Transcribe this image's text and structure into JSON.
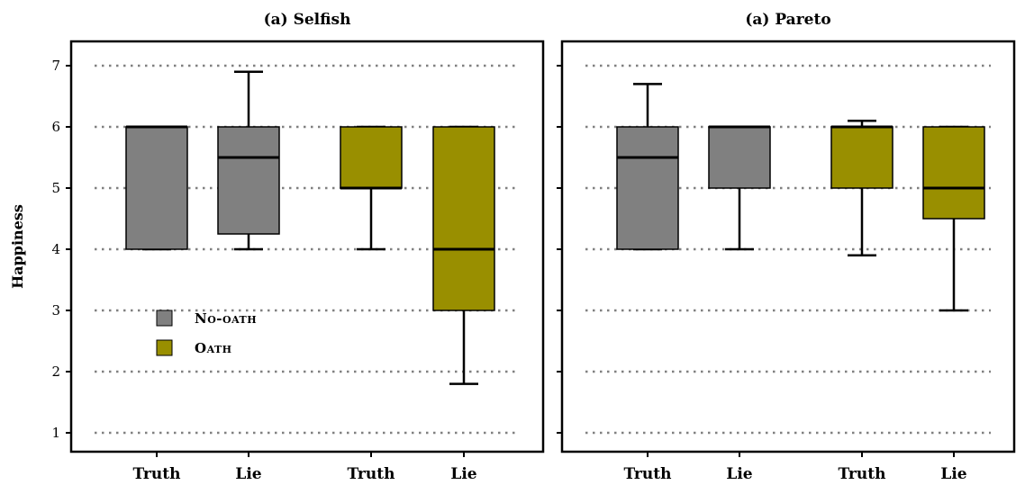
{
  "chart_data": {
    "type": "box",
    "ylabel": "Happiness",
    "ylim": [
      0.75,
      7.5
    ],
    "yticks": [
      1,
      2,
      3,
      4,
      5,
      6,
      7
    ],
    "grid": "horizontal dotted",
    "colors": {
      "No-oath": "#808080",
      "Oath": "#998f00"
    },
    "legend": {
      "position": "lower-left of first panel",
      "entries": [
        {
          "name": "No-oath",
          "label": "No-oath",
          "color": "#808080"
        },
        {
          "name": "Oath",
          "label": "Oath",
          "color": "#998f00"
        }
      ]
    },
    "panels": [
      {
        "title": "(a) Selfish",
        "boxes": [
          {
            "category": "Truth",
            "group": "No-oath",
            "whislo": 4,
            "q1": 4,
            "median": 6,
            "q3": 6,
            "whishi": 6
          },
          {
            "category": "Lie",
            "group": "No-oath",
            "whislo": 4,
            "q1": 4.25,
            "median": 5.5,
            "q3": 6,
            "whishi": 6.9
          },
          {
            "category": "Truth",
            "group": "Oath",
            "whislo": 4,
            "q1": 5,
            "median": 5,
            "q3": 6,
            "whishi": 6
          },
          {
            "category": "Lie",
            "group": "Oath",
            "whislo": 1.8,
            "q1": 3,
            "median": 4,
            "q3": 6,
            "whishi": 6
          }
        ]
      },
      {
        "title": "(a) Pareto",
        "boxes": [
          {
            "category": "Truth",
            "group": "No-oath",
            "whislo": 4,
            "q1": 4,
            "median": 5.5,
            "q3": 6,
            "whishi": 6.7
          },
          {
            "category": "Lie",
            "group": "No-oath",
            "whislo": 4,
            "q1": 5,
            "median": 6,
            "q3": 6,
            "whishi": 6
          },
          {
            "category": "Truth",
            "group": "Oath",
            "whislo": 3.9,
            "q1": 5,
            "median": 6,
            "q3": 6,
            "whishi": 6.1
          },
          {
            "category": "Lie",
            "group": "Oath",
            "whislo": 3,
            "q1": 4.5,
            "median": 5,
            "q3": 6,
            "whishi": 6
          }
        ]
      }
    ]
  }
}
